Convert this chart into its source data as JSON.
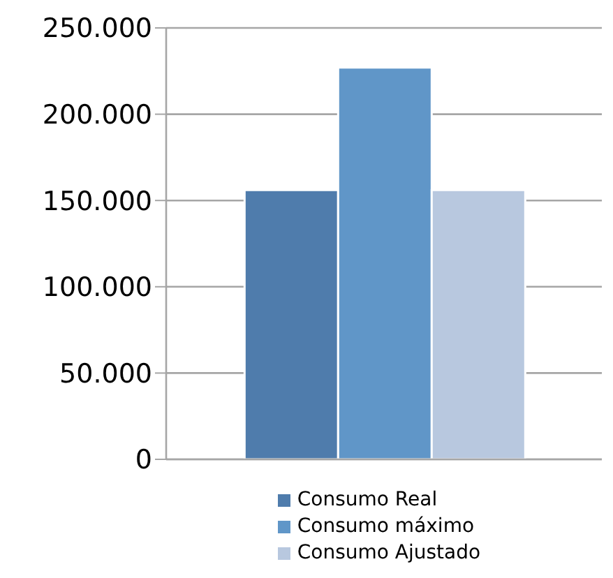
{
  "chart_data": {
    "type": "bar",
    "categories": [
      null
    ],
    "series": [
      {
        "name": "Consumo Real",
        "color": "#4f7cac",
        "values": [
          156000
        ]
      },
      {
        "name": "Consumo máximo",
        "color": "#6096c8",
        "values": [
          227000
        ]
      },
      {
        "name": "Consumo Ajustado",
        "color": "#b8c8df",
        "values": [
          156000
        ]
      }
    ],
    "ylim": [
      0,
      250000
    ],
    "yticks": [
      {
        "value": 0,
        "label": "0"
      },
      {
        "value": 50000,
        "label": "50.000"
      },
      {
        "value": 100000,
        "label": "100.000"
      },
      {
        "value": 150000,
        "label": "150.000"
      },
      {
        "value": 200000,
        "label": "200.000"
      },
      {
        "value": 250000,
        "label": "250.000"
      }
    ],
    "grid": "y",
    "legend": "bottom"
  }
}
